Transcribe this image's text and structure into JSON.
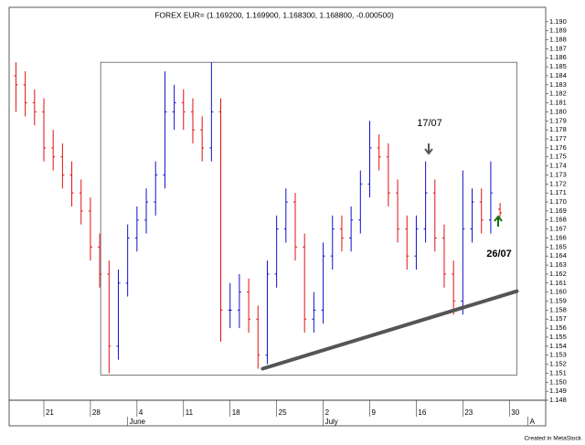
{
  "chart_data": {
    "type": "ohlc",
    "title": "FOREX EUR= (1.169200, 1.169900, 1.168300, 1.168800, -0.000500)",
    "x": [
      2,
      3,
      4,
      5,
      6,
      7,
      8,
      9,
      10,
      11,
      12,
      13,
      14,
      15,
      16,
      17,
      18,
      19,
      20,
      21,
      22,
      23,
      24,
      25,
      26,
      27,
      28,
      29,
      30,
      31,
      32,
      33,
      34,
      35,
      36,
      37,
      38,
      39,
      40,
      41,
      42,
      43,
      44,
      45,
      46,
      47,
      48,
      49,
      50,
      51,
      52,
      53,
      54
    ],
    "open": [
      1.184,
      1.183,
      1.181,
      1.18,
      1.176,
      1.175,
      1.173,
      1.171,
      1.169,
      1.165,
      1.162,
      1.154,
      1.161,
      1.166,
      1.168,
      1.17,
      1.173,
      1.18,
      1.181,
      1.18,
      1.178,
      1.176,
      1.18,
      1.158,
      1.158,
      1.16,
      1.157,
      1.153,
      1.162,
      1.167,
      1.17,
      1.165,
      1.157,
      1.158,
      1.164,
      1.167,
      1.166,
      1.168,
      1.172,
      1.176,
      1.175,
      1.171,
      1.167,
      1.164,
      1.167,
      1.171,
      1.166,
      1.162,
      1.159,
      1.167,
      1.17,
      1.168,
      1.1692
    ],
    "high": [
      1.1855,
      1.1845,
      1.1825,
      1.1815,
      1.178,
      1.1765,
      1.1745,
      1.1725,
      1.1705,
      1.1665,
      1.1635,
      1.1625,
      1.1675,
      1.1695,
      1.1715,
      1.1745,
      1.1845,
      1.183,
      1.1825,
      1.1815,
      1.1795,
      1.1855,
      1.1815,
      1.161,
      1.162,
      1.1615,
      1.1585,
      1.1635,
      1.1685,
      1.1715,
      1.171,
      1.1665,
      1.16,
      1.1655,
      1.1685,
      1.1685,
      1.1695,
      1.1735,
      1.179,
      1.1775,
      1.1765,
      1.1725,
      1.1685,
      1.1685,
      1.1745,
      1.1725,
      1.1675,
      1.1635,
      1.1735,
      1.1715,
      1.1715,
      1.1745,
      1.1699
    ],
    "low": [
      1.18,
      1.1795,
      1.1785,
      1.1745,
      1.1735,
      1.1715,
      1.1695,
      1.1675,
      1.1635,
      1.1605,
      1.151,
      1.1525,
      1.1595,
      1.1645,
      1.1665,
      1.1685,
      1.1715,
      1.178,
      1.178,
      1.1765,
      1.1745,
      1.1745,
      1.1545,
      1.156,
      1.156,
      1.1555,
      1.1515,
      1.152,
      1.1605,
      1.1655,
      1.1635,
      1.1555,
      1.1555,
      1.1565,
      1.1625,
      1.1645,
      1.1645,
      1.1665,
      1.1705,
      1.1735,
      1.1695,
      1.1655,
      1.1625,
      1.1625,
      1.1655,
      1.1645,
      1.1605,
      1.1575,
      1.1575,
      1.1655,
      1.1665,
      1.1665,
      1.1683
    ],
    "close": [
      1.183,
      1.181,
      1.18,
      1.176,
      1.175,
      1.173,
      1.171,
      1.169,
      1.165,
      1.162,
      1.154,
      1.161,
      1.166,
      1.168,
      1.17,
      1.173,
      1.18,
      1.181,
      1.18,
      1.178,
      1.176,
      1.18,
      1.158,
      1.158,
      1.16,
      1.157,
      1.153,
      1.162,
      1.167,
      1.17,
      1.165,
      1.157,
      1.158,
      1.164,
      1.167,
      1.166,
      1.168,
      1.172,
      1.176,
      1.175,
      1.171,
      1.167,
      1.164,
      1.167,
      1.171,
      1.166,
      1.162,
      1.159,
      1.167,
      1.17,
      1.168,
      1.171,
      1.1688
    ],
    "up_color": "#1010c8",
    "down_color": "#e01010",
    "trendline": {
      "x": [
        28.5,
        55.8
      ],
      "y": [
        1.1515,
        1.1601
      ],
      "color": "#555555"
    },
    "box": {
      "x": [
        11.1,
        55.8
      ],
      "y": [
        1.1855,
        1.1508
      ]
    },
    "annotations": [
      {
        "text": "17/07",
        "color": "#555555"
      },
      {
        "text": "26/07",
        "color": "#107010"
      }
    ],
    "xlim": [
      1.27,
      58.9
    ],
    "ylim": [
      1.148,
      1.1916
    ],
    "xticks": [
      {
        "value": 5,
        "label": "21"
      },
      {
        "value": 10,
        "label": "28"
      },
      {
        "value": 15,
        "label": "4"
      },
      {
        "value": 20,
        "label": "11"
      },
      {
        "value": 25,
        "label": "18"
      },
      {
        "value": 30,
        "label": "25"
      },
      {
        "value": 35,
        "label": "2"
      },
      {
        "value": 40,
        "label": "9"
      },
      {
        "value": 45,
        "label": "16"
      },
      {
        "value": 50,
        "label": "23"
      },
      {
        "value": 55,
        "label": "30"
      }
    ],
    "months": [
      {
        "value": 14,
        "label": "June"
      },
      {
        "value": 35,
        "label": "July"
      },
      {
        "value": 57,
        "label": "A"
      }
    ],
    "yticks": [
      1.148,
      1.149,
      {
        "value": 1.15,
        "label": "1.150"
      },
      1.151,
      1.152,
      1.153,
      1.154,
      1.155,
      1.156,
      1.157,
      1.158,
      1.159,
      {
        "value": 1.16,
        "label": "1.160"
      },
      1.161,
      1.162,
      1.163,
      1.164,
      1.165,
      1.166,
      1.167,
      1.168,
      1.169,
      {
        "value": 1.17,
        "label": "1.170"
      },
      1.171,
      1.172,
      1.173,
      1.174,
      1.175,
      1.176,
      1.177,
      1.178,
      1.179,
      {
        "value": 1.18,
        "label": "1.180"
      },
      1.181,
      1.182,
      1.183,
      1.184,
      1.185,
      1.186,
      1.187,
      1.188,
      1.189,
      {
        "value": 1.19,
        "label": "1.190"
      }
    ],
    "footer": "Created in MetaStock"
  }
}
